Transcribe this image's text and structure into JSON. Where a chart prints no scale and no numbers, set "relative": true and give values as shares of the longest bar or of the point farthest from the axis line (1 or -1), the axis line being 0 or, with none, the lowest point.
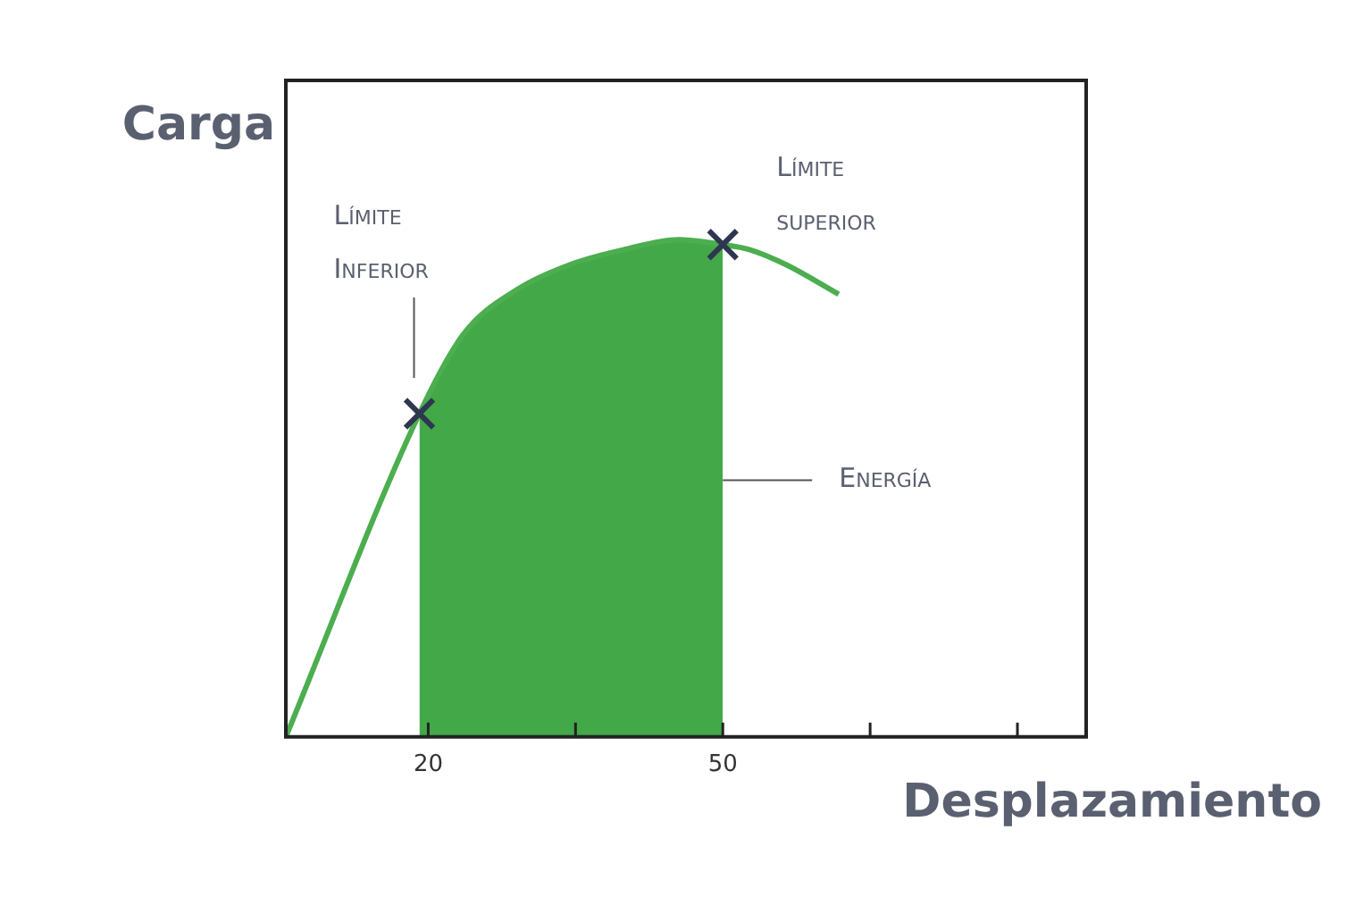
{
  "chart_data": {
    "type": "line",
    "xlabel": "Desplazamiento",
    "ylabel": "Carga",
    "relative": true,
    "xlim": [
      5.5,
      87
    ],
    "xticks": [
      20,
      {
        "value": 35,
        "label": null
      },
      50,
      {
        "value": 65,
        "label": null
      },
      {
        "value": 80,
        "label": null
      }
    ],
    "tick_labels": "x",
    "grid": false,
    "legend": false,
    "series": [
      {
        "type": "area",
        "color": "#43a848",
        "x": [
          19.1,
          23.6,
          29.1,
          34.5,
          40,
          45.5,
          50
        ],
        "values": [
          0.65,
          0.81,
          0.9,
          0.95,
          0.98,
          1,
          0.99
        ]
      },
      {
        "color": "#4cae4f",
        "x": [
          5.5,
          19.1,
          23.6,
          29.1,
          34.5,
          40,
          45.5,
          50,
          52.7,
          56.4,
          61.8
        ],
        "values": [
          0,
          0.65,
          0.81,
          0.9,
          0.95,
          0.98,
          1,
          0.99,
          0.98,
          0.95,
          0.89
        ]
      },
      {
        "type": "scatter",
        "color": "#2f3650",
        "marker": "cross",
        "x": [
          19.1,
          50
        ],
        "values": [
          0.65,
          0.99
        ]
      }
    ],
    "annotations": [
      "Límite Inferior",
      "Límite superior",
      "Energía"
    ]
  }
}
